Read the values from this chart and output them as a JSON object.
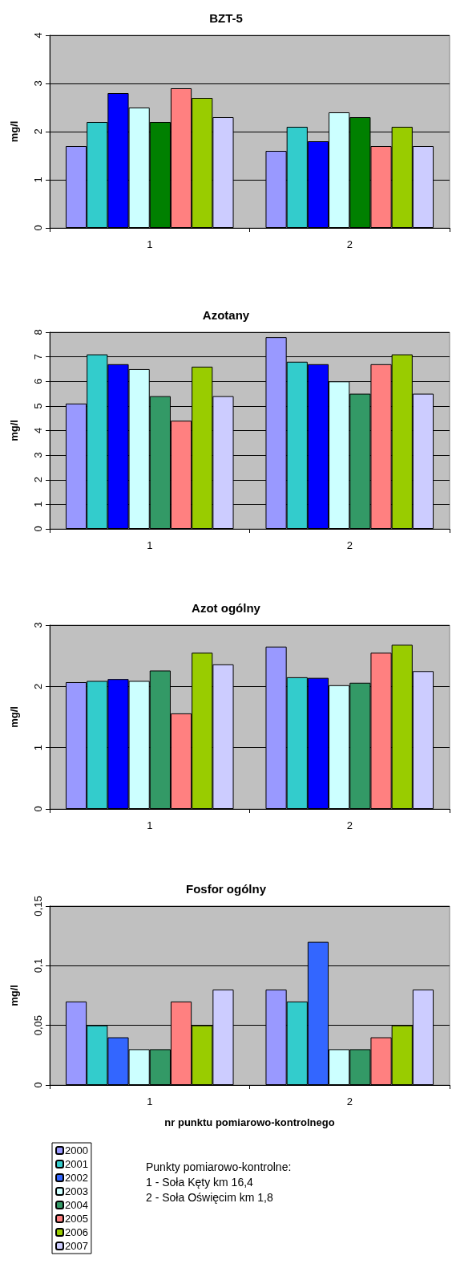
{
  "chart_data": [
    {
      "type": "bar",
      "title": "BZT-5",
      "ylabel": "mg/l",
      "categories": [
        "1",
        "2"
      ],
      "ylim": [
        0,
        4
      ],
      "yticks": [
        0,
        1,
        2,
        3,
        4
      ],
      "grid": "y",
      "legend": false,
      "series": [
        {
          "color": "#9999ff",
          "values": [
            1.7,
            1.6
          ]
        },
        {
          "color": "#33cccc",
          "values": [
            2.2,
            2.1
          ]
        },
        {
          "color": "#0000ff",
          "values": [
            2.8,
            1.8
          ]
        },
        {
          "color": "#ccffff",
          "values": [
            2.5,
            2.4
          ]
        },
        {
          "color": "#008000",
          "values": [
            2.2,
            2.3
          ]
        },
        {
          "color": "#ff8080",
          "values": [
            2.9,
            1.7
          ]
        },
        {
          "color": "#99cc00",
          "values": [
            2.7,
            2.1
          ]
        },
        {
          "color": "#ccccff",
          "values": [
            2.3,
            1.7
          ]
        }
      ]
    },
    {
      "type": "bar",
      "title": "Azotany",
      "ylabel": "mg/l",
      "categories": [
        "1",
        "2"
      ],
      "ylim": [
        0,
        8
      ],
      "yticks": [
        0,
        1,
        2,
        3,
        4,
        5,
        6,
        7,
        8
      ],
      "grid": "y",
      "legend": false,
      "series": [
        {
          "color": "#9999ff",
          "values": [
            5.1,
            7.8
          ]
        },
        {
          "color": "#33cccc",
          "values": [
            7.1,
            6.8
          ]
        },
        {
          "color": "#0000ff",
          "values": [
            6.7,
            6.7
          ]
        },
        {
          "color": "#ccffff",
          "values": [
            6.5,
            6.0
          ]
        },
        {
          "color": "#339966",
          "values": [
            5.4,
            5.5
          ]
        },
        {
          "color": "#ff8080",
          "values": [
            4.4,
            6.7
          ]
        },
        {
          "color": "#99cc00",
          "values": [
            6.6,
            7.1
          ]
        },
        {
          "color": "#ccccff",
          "values": [
            5.4,
            5.5
          ]
        }
      ]
    },
    {
      "type": "bar",
      "title": "Azot ogólny",
      "ylabel": "mg/l",
      "categories": [
        "1",
        "2"
      ],
      "ylim": [
        0,
        3
      ],
      "yticks": [
        0,
        1,
        2,
        3
      ],
      "grid": "y",
      "legend": false,
      "series": [
        {
          "color": "#9999ff",
          "values": [
            2.07,
            2.65
          ]
        },
        {
          "color": "#33cccc",
          "values": [
            2.09,
            2.15
          ]
        },
        {
          "color": "#0000ff",
          "values": [
            2.12,
            2.14
          ]
        },
        {
          "color": "#ccffff",
          "values": [
            2.09,
            2.02
          ]
        },
        {
          "color": "#339966",
          "values": [
            2.26,
            2.06
          ]
        },
        {
          "color": "#ff8080",
          "values": [
            1.56,
            2.55
          ]
        },
        {
          "color": "#99cc00",
          "values": [
            2.55,
            2.68
          ]
        },
        {
          "color": "#ccccff",
          "values": [
            2.36,
            2.25
          ]
        }
      ]
    },
    {
      "type": "bar",
      "title": "Fosfor ogólny",
      "ylabel": "mg/l",
      "xlabel": "nr punktu pomiarowo-kontrolnego",
      "categories": [
        "1",
        "2"
      ],
      "ylim": [
        0,
        0.15
      ],
      "yticks": [
        0,
        {
          "value": 0.05,
          "label": "0,05"
        },
        {
          "value": 0.1,
          "label": "0,1"
        },
        {
          "value": 0.15,
          "label": "0,15"
        }
      ],
      "grid": "y",
      "legend": "bottom left",
      "annotations": [
        "Punkty pomiarowo-kontrolne:",
        "1 - Soła Kęty km 16,4",
        "2 - Soła Oświęcim km 1,8"
      ],
      "series": [
        {
          "name": "2000",
          "color": "#9999ff",
          "values": [
            0.07,
            0.08
          ]
        },
        {
          "name": "2001",
          "color": "#33cccc",
          "values": [
            0.05,
            0.07
          ]
        },
        {
          "name": "2002",
          "color": "#3366ff",
          "values": [
            0.04,
            0.12
          ]
        },
        {
          "name": "2003",
          "color": "#ccffff",
          "values": [
            0.03,
            0.03
          ]
        },
        {
          "name": "2004",
          "color": "#339966",
          "values": [
            0.03,
            0.03
          ]
        },
        {
          "name": "2005",
          "color": "#ff8080",
          "values": [
            0.07,
            0.04
          ]
        },
        {
          "name": "2006",
          "color": "#99cc00",
          "values": [
            0.05,
            0.05
          ]
        },
        {
          "name": "2007",
          "color": "#ccccff",
          "values": [
            0.08,
            0.08
          ]
        }
      ]
    }
  ]
}
